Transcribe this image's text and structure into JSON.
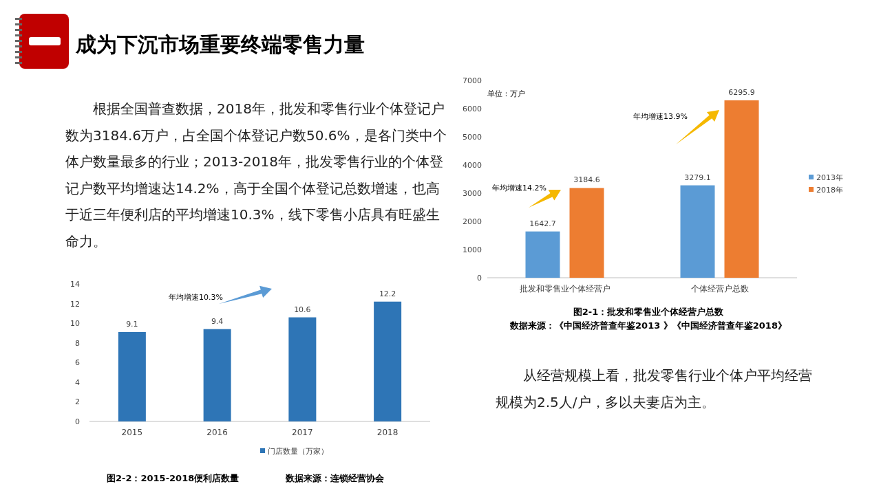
{
  "chart_data": [
    {
      "type": "other",
      "title": "成为下沉市场重要终端零售力量",
      "annotations": [
        "根据全国普查数据，2018年，批发和零售行业个体登记户数为3184.6万户，占全国个体登记户数50.6%，是各门类中个体户数量最多的行业；2013-2018年，批发零售行业的个体登记户数平均增速达14.2%，高于全国个体登记总数增速，也高于近三年便利店的平均增速10.3%，线下零售小店具有旺盛生命力。"
      ]
    },
    {
      "type": "bar",
      "title": "图2-1：批发和零售业个体经营户总数",
      "annotations": [
        "单位：万户",
        "年均增速14.2%",
        "年均增速13.9%",
        "数据来源：《中国经济普查年鉴2013 》《中国经济普查年鉴2018》"
      ],
      "categories": [
        "批发和零售业个体经营户",
        "个体经营户总数"
      ],
      "series": [
        {
          "name": "2013年",
          "color": "#5b9bd5",
          "values": [
            1642.7,
            3279.1
          ]
        },
        {
          "name": "2018年",
          "color": "#ed7d31",
          "values": [
            3184.6,
            6295.9
          ]
        }
      ],
      "ylim": [
        0,
        7000
      ],
      "yticks": [
        0,
        1000,
        2000,
        3000,
        4000,
        5000,
        6000,
        7000
      ],
      "data_labels": true,
      "legend": "right"
    },
    {
      "type": "bar",
      "title": "图2-2：2015-2018便利店数量",
      "annotations": [
        "年均增速10.3%",
        "数据来源：连锁经营协会"
      ],
      "categories": [
        "2015",
        "2016",
        "2017",
        "2018"
      ],
      "series": [
        {
          "name": "门店数量（万家）",
          "color": "#2e75b6",
          "values": [
            9.1,
            9.4,
            10.6,
            12.2
          ]
        }
      ],
      "ylim": [
        0,
        14
      ],
      "yticks": [
        0,
        2,
        4,
        6,
        8,
        10,
        12,
        14
      ],
      "data_labels": true,
      "legend": "bottom"
    },
    {
      "type": "other",
      "annotations": [
        "从经营规模上看，批发零售行业个体户平均经营规模为2.5人/户，多以夫妻店为主。"
      ]
    }
  ]
}
